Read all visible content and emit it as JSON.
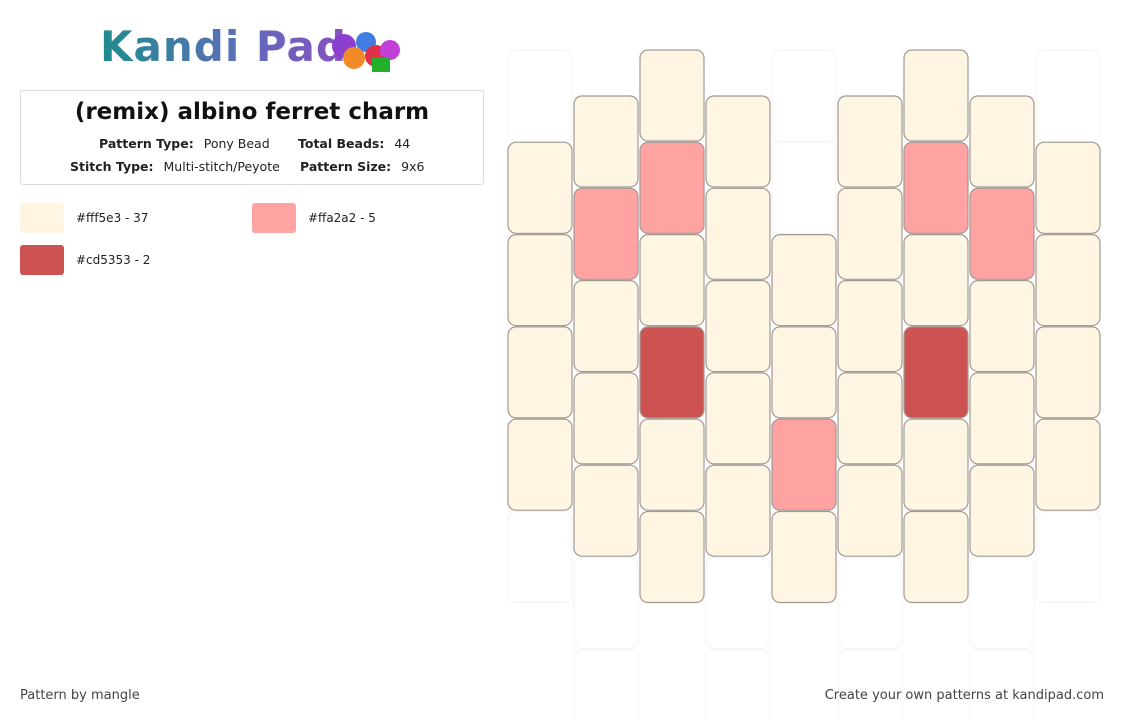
{
  "logo": "Kandi Pad",
  "title": "(remix) albino ferret charm",
  "details": [
    {
      "label": "Pattern Type:",
      "value": "Pony Bead"
    },
    {
      "label": "Total Beads:",
      "value": "44"
    },
    {
      "label": "Stitch Type:",
      "value": "Multi-stitch/Peyote"
    },
    {
      "label": "Pattern Size:",
      "value": "9x6"
    }
  ],
  "legend": [
    {
      "color": "#fff5e3",
      "label": "#fff5e3 - 37"
    },
    {
      "color": "#ffa2a2",
      "label": "#ffa2a2 - 5"
    },
    {
      "color": "#cd5353",
      "label": "#cd5353 - 2"
    }
  ],
  "columns": [
    [
      null,
      0,
      0,
      0,
      0,
      null
    ],
    [
      0,
      1,
      0,
      0,
      0,
      null
    ],
    [
      0,
      1,
      0,
      2,
      0,
      0
    ],
    [
      0,
      0,
      0,
      0,
      0,
      null
    ],
    [
      null,
      null,
      0,
      0,
      1,
      0
    ],
    [
      0,
      0,
      0,
      0,
      0,
      null
    ],
    [
      0,
      1,
      0,
      2,
      0,
      0
    ],
    [
      0,
      1,
      0,
      0,
      0,
      null
    ],
    [
      null,
      0,
      0,
      0,
      0,
      null
    ]
  ],
  "footer": {
    "left": "Pattern by mangle",
    "right": "Create your own patterns at kandipad.com"
  }
}
